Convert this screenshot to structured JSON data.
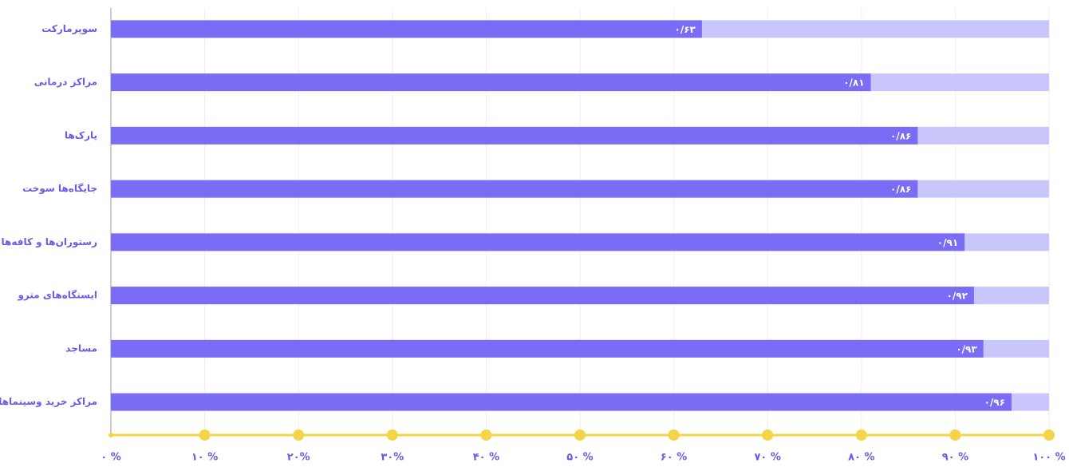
{
  "chart_data": {
    "type": "barh",
    "categories": [
      "سوپرمارکت",
      "مراکز درمانی",
      "پارک‌ها",
      "جایگاه‌ها سوخت",
      "رستوران‌ها و کافه‌ها",
      "ایستگاه‌های مترو",
      "مساجد",
      "مراکز خرید وسینماها"
    ],
    "values": [
      0.63,
      0.81,
      0.86,
      0.86,
      0.91,
      0.92,
      0.93,
      0.96
    ],
    "value_labels": [
      "۰/۶۳",
      "۰/۸۱",
      "۰/۸۶",
      "۰/۸۶",
      "۰/۹۱",
      "۰/۹۲",
      "۰/۹۳",
      "۰/۹۶"
    ],
    "color": "#7b6cf6",
    "background_color": "#c9c6fc",
    "axis_color": "#f5d547",
    "xlim": [
      0,
      1
    ],
    "xticks": [
      {
        "value": 0,
        "label": "۰ %"
      },
      {
        "value": 0.1,
        "label": "۱۰ %"
      },
      {
        "value": 0.2,
        "label": "۲۰%"
      },
      {
        "value": 0.3,
        "label": "۳۰%"
      },
      {
        "value": 0.4,
        "label": "۴۰ %"
      },
      {
        "value": 0.5,
        "label": "۵۰ %"
      },
      {
        "value": 0.6,
        "label": "۶۰ %"
      },
      {
        "value": 0.7,
        "label": "۷۰ %"
      },
      {
        "value": 0.8,
        "label": "۸۰ %"
      },
      {
        "value": 0.9,
        "label": "۹۰ %"
      },
      {
        "value": 1,
        "label": "۱۰۰ %"
      }
    ],
    "grid": true
  }
}
